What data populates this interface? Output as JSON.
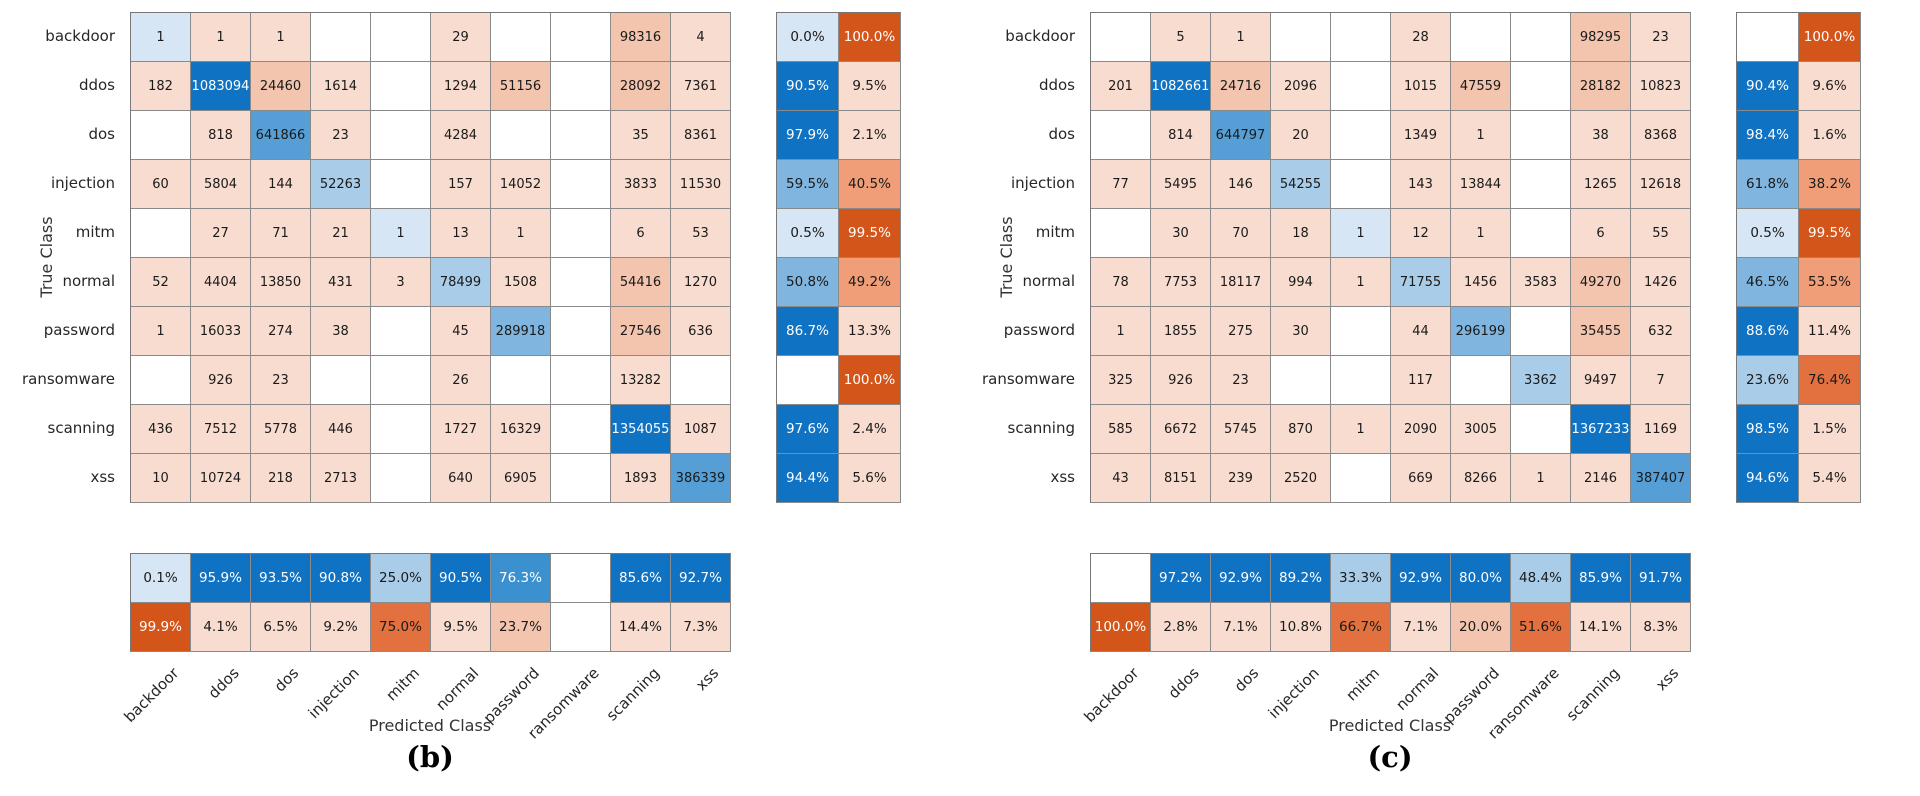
{
  "palette": {
    "w": "#ffffff",
    "p1": "#f8dccf",
    "p2": "#f3c5ae",
    "b1": "#d6e6f4",
    "b2": "#a9cde9",
    "b3": "#7fb5de",
    "b4": "#559fd6",
    "b45": "#3b91d0",
    "b5": "#1072c3",
    "o1": "#ef9e78",
    "o2": "#e3703f",
    "o3": "#d4551a"
  },
  "white_text_keys": [
    "b5",
    "b45",
    "o3"
  ],
  "text_color_dark": "#1a1a1a",
  "text_color_light": "#ffffff",
  "chart_data": [
    {
      "type": "heatmap",
      "title": "(b)",
      "xlabel": "Predicted Class",
      "ylabel": "True Class",
      "x_categories": [
        "backdoor",
        "ddos",
        "dos",
        "injection",
        "mitm",
        "normal",
        "password",
        "ransomware",
        "scanning",
        "xss"
      ],
      "y_categories": [
        "backdoor",
        "ddos",
        "dos",
        "injection",
        "mitm",
        "normal",
        "password",
        "ransomware",
        "scanning",
        "xss"
      ],
      "cells": [
        [
          [
            "1",
            "b1"
          ],
          [
            "1",
            "p1"
          ],
          [
            "1",
            "p1"
          ],
          [
            "",
            "w"
          ],
          [
            "",
            "w"
          ],
          [
            "29",
            "p1"
          ],
          [
            "",
            "w"
          ],
          [
            "",
            "w"
          ],
          [
            "98316",
            "p2"
          ],
          [
            "4",
            "p1"
          ]
        ],
        [
          [
            "182",
            "p1"
          ],
          [
            "1083094",
            "b5"
          ],
          [
            "24460",
            "p2"
          ],
          [
            "1614",
            "p1"
          ],
          [
            "",
            "w"
          ],
          [
            "1294",
            "p1"
          ],
          [
            "51156",
            "p2"
          ],
          [
            "",
            "w"
          ],
          [
            "28092",
            "p2"
          ],
          [
            "7361",
            "p1"
          ]
        ],
        [
          [
            "",
            "w"
          ],
          [
            "818",
            "p1"
          ],
          [
            "641866",
            "b4"
          ],
          [
            "23",
            "p1"
          ],
          [
            "",
            "w"
          ],
          [
            "4284",
            "p1"
          ],
          [
            "",
            "w"
          ],
          [
            "",
            "w"
          ],
          [
            "35",
            "p1"
          ],
          [
            "8361",
            "p1"
          ]
        ],
        [
          [
            "60",
            "p1"
          ],
          [
            "5804",
            "p1"
          ],
          [
            "144",
            "p1"
          ],
          [
            "52263",
            "b2"
          ],
          [
            "",
            "w"
          ],
          [
            "157",
            "p1"
          ],
          [
            "14052",
            "p1"
          ],
          [
            "",
            "w"
          ],
          [
            "3833",
            "p1"
          ],
          [
            "11530",
            "p1"
          ]
        ],
        [
          [
            "",
            "w"
          ],
          [
            "27",
            "p1"
          ],
          [
            "71",
            "p1"
          ],
          [
            "21",
            "p1"
          ],
          [
            "1",
            "b1"
          ],
          [
            "13",
            "p1"
          ],
          [
            "1",
            "p1"
          ],
          [
            "",
            "w"
          ],
          [
            "6",
            "p1"
          ],
          [
            "53",
            "p1"
          ]
        ],
        [
          [
            "52",
            "p1"
          ],
          [
            "4404",
            "p1"
          ],
          [
            "13850",
            "p1"
          ],
          [
            "431",
            "p1"
          ],
          [
            "3",
            "p1"
          ],
          [
            "78499",
            "b2"
          ],
          [
            "1508",
            "p1"
          ],
          [
            "",
            "w"
          ],
          [
            "54416",
            "p2"
          ],
          [
            "1270",
            "p1"
          ]
        ],
        [
          [
            "1",
            "p1"
          ],
          [
            "16033",
            "p1"
          ],
          [
            "274",
            "p1"
          ],
          [
            "38",
            "p1"
          ],
          [
            "",
            "w"
          ],
          [
            "45",
            "p1"
          ],
          [
            "289918",
            "b3"
          ],
          [
            "",
            "w"
          ],
          [
            "27546",
            "p2"
          ],
          [
            "636",
            "p1"
          ]
        ],
        [
          [
            "",
            "w"
          ],
          [
            "926",
            "p1"
          ],
          [
            "23",
            "p1"
          ],
          [
            "",
            "w"
          ],
          [
            "",
            "w"
          ],
          [
            "26",
            "p1"
          ],
          [
            "",
            "w"
          ],
          [
            "",
            "w"
          ],
          [
            "13282",
            "p1"
          ],
          [
            "",
            "w"
          ]
        ],
        [
          [
            "436",
            "p1"
          ],
          [
            "7512",
            "p1"
          ],
          [
            "5778",
            "p1"
          ],
          [
            "446",
            "p1"
          ],
          [
            "",
            "w"
          ],
          [
            "1727",
            "p1"
          ],
          [
            "16329",
            "p1"
          ],
          [
            "",
            "w"
          ],
          [
            "1354055",
            "b5"
          ],
          [
            "1087",
            "p1"
          ]
        ],
        [
          [
            "10",
            "p1"
          ],
          [
            "10724",
            "p1"
          ],
          [
            "218",
            "p1"
          ],
          [
            "2713",
            "p1"
          ],
          [
            "",
            "w"
          ],
          [
            "640",
            "p1"
          ],
          [
            "6905",
            "p1"
          ],
          [
            "",
            "w"
          ],
          [
            "1893",
            "p1"
          ],
          [
            "386339",
            "b4"
          ]
        ]
      ],
      "row_summary": [
        [
          [
            "0.0%",
            "b1"
          ],
          [
            "100.0%",
            "o3"
          ]
        ],
        [
          [
            "90.5%",
            "b5"
          ],
          [
            "9.5%",
            "p1"
          ]
        ],
        [
          [
            "97.9%",
            "b5"
          ],
          [
            "2.1%",
            "p1"
          ]
        ],
        [
          [
            "59.5%",
            "b3"
          ],
          [
            "40.5%",
            "o1"
          ]
        ],
        [
          [
            "0.5%",
            "b1"
          ],
          [
            "99.5%",
            "o3"
          ]
        ],
        [
          [
            "50.8%",
            "b3"
          ],
          [
            "49.2%",
            "o1"
          ]
        ],
        [
          [
            "86.7%",
            "b5"
          ],
          [
            "13.3%",
            "p1"
          ]
        ],
        [
          [
            "",
            "w"
          ],
          [
            "100.0%",
            "o3"
          ]
        ],
        [
          [
            "97.6%",
            "b5"
          ],
          [
            "2.4%",
            "p1"
          ]
        ],
        [
          [
            "94.4%",
            "b5"
          ],
          [
            "5.6%",
            "p1"
          ]
        ]
      ],
      "col_summary": [
        [
          [
            "0.1%",
            "b1"
          ],
          [
            "95.9%",
            "b5"
          ],
          [
            "93.5%",
            "b5"
          ],
          [
            "90.8%",
            "b5"
          ],
          [
            "25.0%",
            "b2"
          ],
          [
            "90.5%",
            "b5"
          ],
          [
            "76.3%",
            "b45"
          ],
          [
            "",
            "w"
          ],
          [
            "85.6%",
            "b5"
          ],
          [
            "92.7%",
            "b5"
          ]
        ],
        [
          [
            "99.9%",
            "o3"
          ],
          [
            "4.1%",
            "p1"
          ],
          [
            "6.5%",
            "p1"
          ],
          [
            "9.2%",
            "p1"
          ],
          [
            "75.0%",
            "o2"
          ],
          [
            "9.5%",
            "p1"
          ],
          [
            "23.7%",
            "p2"
          ],
          [
            "",
            "w"
          ],
          [
            "14.4%",
            "p1"
          ],
          [
            "7.3%",
            "p1"
          ]
        ]
      ]
    },
    {
      "type": "heatmap",
      "title": "(c)",
      "xlabel": "Predicted Class",
      "ylabel": "True Class",
      "x_categories": [
        "backdoor",
        "ddos",
        "dos",
        "injection",
        "mitm",
        "normal",
        "password",
        "ransomware",
        "scanning",
        "xss"
      ],
      "y_categories": [
        "backdoor",
        "ddos",
        "dos",
        "injection",
        "mitm",
        "normal",
        "password",
        "ransomware",
        "scanning",
        "xss"
      ],
      "cells": [
        [
          [
            "",
            "w"
          ],
          [
            "5",
            "p1"
          ],
          [
            "1",
            "p1"
          ],
          [
            "",
            "w"
          ],
          [
            "",
            "w"
          ],
          [
            "28",
            "p1"
          ],
          [
            "",
            "w"
          ],
          [
            "",
            "w"
          ],
          [
            "98295",
            "p2"
          ],
          [
            "23",
            "p1"
          ]
        ],
        [
          [
            "201",
            "p1"
          ],
          [
            "1082661",
            "b5"
          ],
          [
            "24716",
            "p2"
          ],
          [
            "2096",
            "p1"
          ],
          [
            "",
            "w"
          ],
          [
            "1015",
            "p1"
          ],
          [
            "47559",
            "p2"
          ],
          [
            "",
            "w"
          ],
          [
            "28182",
            "p2"
          ],
          [
            "10823",
            "p1"
          ]
        ],
        [
          [
            "",
            "w"
          ],
          [
            "814",
            "p1"
          ],
          [
            "644797",
            "b4"
          ],
          [
            "20",
            "p1"
          ],
          [
            "",
            "w"
          ],
          [
            "1349",
            "p1"
          ],
          [
            "1",
            "p1"
          ],
          [
            "",
            "w"
          ],
          [
            "38",
            "p1"
          ],
          [
            "8368",
            "p1"
          ]
        ],
        [
          [
            "77",
            "p1"
          ],
          [
            "5495",
            "p1"
          ],
          [
            "146",
            "p1"
          ],
          [
            "54255",
            "b2"
          ],
          [
            "",
            "w"
          ],
          [
            "143",
            "p1"
          ],
          [
            "13844",
            "p1"
          ],
          [
            "",
            "w"
          ],
          [
            "1265",
            "p1"
          ],
          [
            "12618",
            "p1"
          ]
        ],
        [
          [
            "",
            "w"
          ],
          [
            "30",
            "p1"
          ],
          [
            "70",
            "p1"
          ],
          [
            "18",
            "p1"
          ],
          [
            "1",
            "b1"
          ],
          [
            "12",
            "p1"
          ],
          [
            "1",
            "p1"
          ],
          [
            "",
            "w"
          ],
          [
            "6",
            "p1"
          ],
          [
            "55",
            "p1"
          ]
        ],
        [
          [
            "78",
            "p1"
          ],
          [
            "7753",
            "p1"
          ],
          [
            "18117",
            "p1"
          ],
          [
            "994",
            "p1"
          ],
          [
            "1",
            "p1"
          ],
          [
            "71755",
            "b2"
          ],
          [
            "1456",
            "p1"
          ],
          [
            "3583",
            "p1"
          ],
          [
            "49270",
            "p2"
          ],
          [
            "1426",
            "p1"
          ]
        ],
        [
          [
            "1",
            "p1"
          ],
          [
            "1855",
            "p1"
          ],
          [
            "275",
            "p1"
          ],
          [
            "30",
            "p1"
          ],
          [
            "",
            "w"
          ],
          [
            "44",
            "p1"
          ],
          [
            "296199",
            "b3"
          ],
          [
            "",
            "w"
          ],
          [
            "35455",
            "p2"
          ],
          [
            "632",
            "p1"
          ]
        ],
        [
          [
            "325",
            "p1"
          ],
          [
            "926",
            "p1"
          ],
          [
            "23",
            "p1"
          ],
          [
            "",
            "w"
          ],
          [
            "",
            "w"
          ],
          [
            "117",
            "p1"
          ],
          [
            "",
            "w"
          ],
          [
            "3362",
            "b2"
          ],
          [
            "9497",
            "p1"
          ],
          [
            "7",
            "p1"
          ]
        ],
        [
          [
            "585",
            "p1"
          ],
          [
            "6672",
            "p1"
          ],
          [
            "5745",
            "p1"
          ],
          [
            "870",
            "p1"
          ],
          [
            "1",
            "p1"
          ],
          [
            "2090",
            "p1"
          ],
          [
            "3005",
            "p1"
          ],
          [
            "",
            "w"
          ],
          [
            "1367233",
            "b5"
          ],
          [
            "1169",
            "p1"
          ]
        ],
        [
          [
            "43",
            "p1"
          ],
          [
            "8151",
            "p1"
          ],
          [
            "239",
            "p1"
          ],
          [
            "2520",
            "p1"
          ],
          [
            "",
            "w"
          ],
          [
            "669",
            "p1"
          ],
          [
            "8266",
            "p1"
          ],
          [
            "1",
            "p1"
          ],
          [
            "2146",
            "p1"
          ],
          [
            "387407",
            "b4"
          ]
        ]
      ],
      "row_summary": [
        [
          [
            "",
            "w"
          ],
          [
            "100.0%",
            "o3"
          ]
        ],
        [
          [
            "90.4%",
            "b5"
          ],
          [
            "9.6%",
            "p1"
          ]
        ],
        [
          [
            "98.4%",
            "b5"
          ],
          [
            "1.6%",
            "p1"
          ]
        ],
        [
          [
            "61.8%",
            "b3"
          ],
          [
            "38.2%",
            "o1"
          ]
        ],
        [
          [
            "0.5%",
            "b1"
          ],
          [
            "99.5%",
            "o3"
          ]
        ],
        [
          [
            "46.5%",
            "b3"
          ],
          [
            "53.5%",
            "o1"
          ]
        ],
        [
          [
            "88.6%",
            "b5"
          ],
          [
            "11.4%",
            "p1"
          ]
        ],
        [
          [
            "23.6%",
            "b2"
          ],
          [
            "76.4%",
            "o2"
          ]
        ],
        [
          [
            "98.5%",
            "b5"
          ],
          [
            "1.5%",
            "p1"
          ]
        ],
        [
          [
            "94.6%",
            "b5"
          ],
          [
            "5.4%",
            "p1"
          ]
        ]
      ],
      "col_summary": [
        [
          [
            "",
            "w"
          ],
          [
            "97.2%",
            "b5"
          ],
          [
            "92.9%",
            "b5"
          ],
          [
            "89.2%",
            "b5"
          ],
          [
            "33.3%",
            "b2"
          ],
          [
            "92.9%",
            "b5"
          ],
          [
            "80.0%",
            "b5"
          ],
          [
            "48.4%",
            "b2"
          ],
          [
            "85.9%",
            "b5"
          ],
          [
            "91.7%",
            "b5"
          ]
        ],
        [
          [
            "100.0%",
            "o3"
          ],
          [
            "2.8%",
            "p1"
          ],
          [
            "7.1%",
            "p1"
          ],
          [
            "10.8%",
            "p1"
          ],
          [
            "66.7%",
            "o2"
          ],
          [
            "7.1%",
            "p1"
          ],
          [
            "20.0%",
            "p2"
          ],
          [
            "51.6%",
            "o2"
          ],
          [
            "14.1%",
            "p1"
          ],
          [
            "8.3%",
            "p1"
          ]
        ]
      ]
    }
  ]
}
